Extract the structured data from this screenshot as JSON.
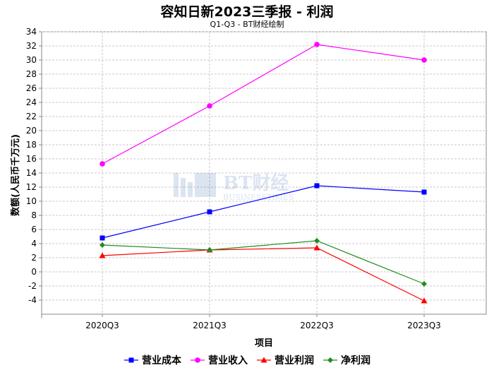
{
  "title": "容知日新2023三季报 - 利润",
  "subtitle": "Q1-Q3 - BT财经绘制",
  "watermark": {
    "main": "BT财经",
    "sub": "BUSINESSTIMES"
  },
  "chart_data": {
    "type": "line",
    "title": "容知日新2023三季报 - 利润",
    "subtitle": "Q1-Q3 - BT财经绘制",
    "xlabel": "项目",
    "ylabel": "数额(人民币千万元)",
    "categories": [
      "2020Q3",
      "2021Q3",
      "2022Q3",
      "2023Q3"
    ],
    "ylim": [
      -6,
      34
    ],
    "yticks": [
      -4,
      -2,
      0,
      2,
      4,
      6,
      8,
      10,
      12,
      14,
      16,
      18,
      20,
      22,
      24,
      26,
      28,
      30,
      32,
      34
    ],
    "grid": true,
    "legend": "bottom",
    "series": [
      {
        "name": "营业成本",
        "values": [
          4.8,
          8.5,
          12.2,
          11.3
        ],
        "color": "#0000ff",
        "marker": "square"
      },
      {
        "name": "营业收入",
        "values": [
          15.3,
          23.5,
          32.2,
          30.0
        ],
        "color": "#ff00ff",
        "marker": "circle"
      },
      {
        "name": "营业利润",
        "values": [
          2.3,
          3.1,
          3.4,
          -4.1
        ],
        "color": "#ff0000",
        "marker": "triangle"
      },
      {
        "name": "净利润",
        "values": [
          3.8,
          3.1,
          4.4,
          -1.7
        ],
        "color": "#228b22",
        "marker": "diamond"
      }
    ]
  }
}
